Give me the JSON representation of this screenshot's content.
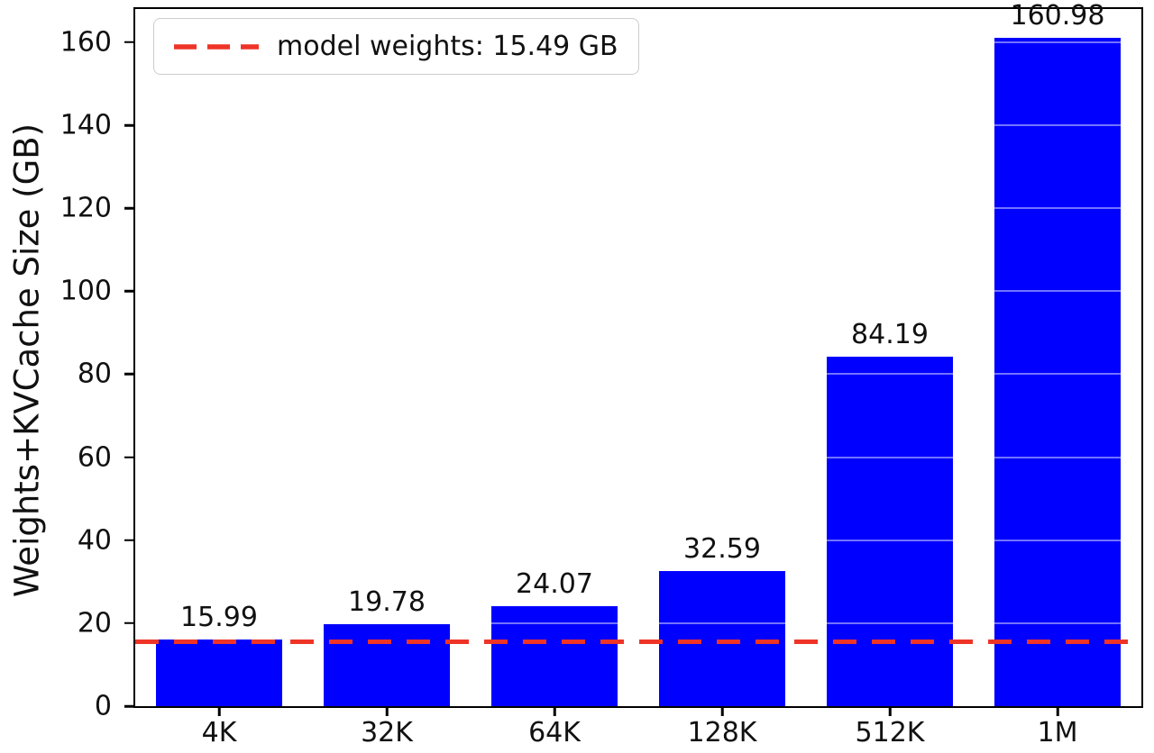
{
  "chart_data": {
    "type": "bar",
    "title": "",
    "xlabel": "",
    "ylabel": "Weights+KVCache Size (GB)",
    "categories": [
      "4K",
      "32K",
      "64K",
      "128K",
      "512K",
      "1M"
    ],
    "values": [
      15.99,
      19.78,
      24.07,
      32.59,
      84.19,
      160.98
    ],
    "value_labels": [
      "15.99",
      "19.78",
      "24.07",
      "32.59",
      "84.19",
      "160.98"
    ],
    "ylim": [
      0,
      168
    ],
    "yticks": [
      0,
      20,
      40,
      60,
      80,
      100,
      120,
      140,
      160
    ],
    "ytick_labels": [
      "0",
      "20",
      "40",
      "60",
      "80",
      "100",
      "120",
      "140",
      "160"
    ],
    "bar_color": "#0000ff",
    "grid": "horizontal-over-bars",
    "legend_position": "upper left",
    "threshold": {
      "value": 15.49,
      "label": "model weights: 15.49 GB",
      "color": "#ee3427",
      "style": "dashed"
    }
  }
}
